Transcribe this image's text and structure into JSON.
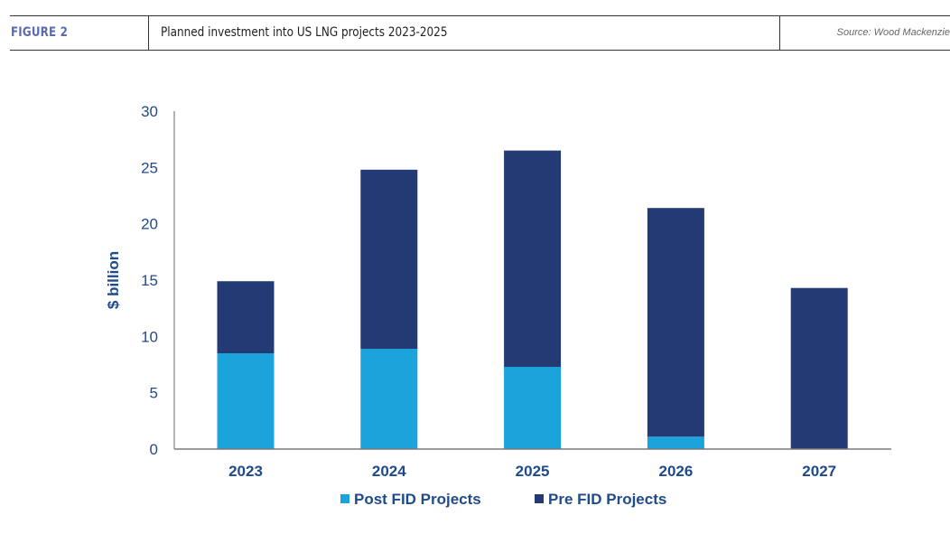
{
  "header": {
    "figure_label": "FIGURE 2",
    "title": "Planned investment into US LNG projects 2023-2025",
    "source": "Source: Wood Mackenzie"
  },
  "chart_data": {
    "type": "bar",
    "stacked": true,
    "title": "Planned investment into US LNG projects 2023-2025",
    "xlabel": "",
    "ylabel": "$ billion",
    "categories": [
      "2023",
      "2024",
      "2025",
      "2026",
      "2027"
    ],
    "series": [
      {
        "name": "Post FID Projects",
        "color": "#1ba3dc",
        "values": [
          8.5,
          8.9,
          7.3,
          1.1,
          0
        ]
      },
      {
        "name": "Pre FID Projects",
        "color": "#233a75",
        "values": [
          6.4,
          15.9,
          19.2,
          20.3,
          14.3
        ]
      }
    ],
    "ylim": [
      0,
      30
    ],
    "yticks": [
      0,
      5,
      10,
      15,
      20,
      25,
      30
    ],
    "grid": false,
    "legend": "bottom"
  }
}
